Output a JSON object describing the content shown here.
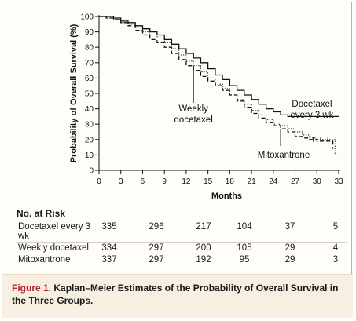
{
  "chart_data": {
    "type": "line",
    "title": "",
    "xlabel": "Months",
    "ylabel": "Probability of Overall Survival (%)",
    "xlim": [
      0,
      33
    ],
    "ylim": [
      0,
      100
    ],
    "x_ticks": [
      0,
      3,
      6,
      9,
      12,
      15,
      18,
      21,
      24,
      27,
      30,
      33
    ],
    "y_ticks": [
      0,
      10,
      20,
      30,
      40,
      50,
      60,
      70,
      80,
      90,
      100
    ],
    "grid": false,
    "legend": "inline annotations",
    "series": [
      {
        "name": "Docetaxel every 3 wk",
        "style": "solid",
        "points": [
          [
            0,
            100
          ],
          [
            1,
            100
          ],
          [
            2,
            99
          ],
          [
            3,
            97
          ],
          [
            4,
            96
          ],
          [
            5,
            94
          ],
          [
            6,
            92
          ],
          [
            7,
            90
          ],
          [
            8,
            88
          ],
          [
            9,
            85
          ],
          [
            10,
            82
          ],
          [
            11,
            79
          ],
          [
            12,
            76
          ],
          [
            13,
            73
          ],
          [
            14,
            70
          ],
          [
            15,
            66
          ],
          [
            16,
            62
          ],
          [
            17,
            59
          ],
          [
            18,
            55
          ],
          [
            19,
            52
          ],
          [
            20,
            49
          ],
          [
            21,
            46
          ],
          [
            22,
            43
          ],
          [
            23,
            40
          ],
          [
            24,
            38
          ],
          [
            25,
            36
          ],
          [
            26,
            35
          ],
          [
            33,
            35
          ]
        ]
      },
      {
        "name": "Weekly docetaxel",
        "style": "dotted",
        "points": [
          [
            0,
            100
          ],
          [
            1,
            99
          ],
          [
            2,
            98
          ],
          [
            3,
            96
          ],
          [
            4,
            95
          ],
          [
            5,
            93
          ],
          [
            6,
            90
          ],
          [
            7,
            88
          ],
          [
            8,
            86
          ],
          [
            9,
            83
          ],
          [
            10,
            79
          ],
          [
            11,
            75
          ],
          [
            12,
            71
          ],
          [
            13,
            68
          ],
          [
            14,
            64
          ],
          [
            15,
            60
          ],
          [
            16,
            56
          ],
          [
            17,
            53
          ],
          [
            18,
            49
          ],
          [
            19,
            46
          ],
          [
            20,
            43
          ],
          [
            21,
            39
          ],
          [
            22,
            36
          ],
          [
            23,
            33
          ],
          [
            24,
            30
          ],
          [
            25,
            29
          ],
          [
            26,
            27
          ],
          [
            27,
            25
          ],
          [
            28,
            23
          ],
          [
            29,
            21
          ],
          [
            30,
            20
          ],
          [
            32,
            20
          ],
          [
            32.5,
            10
          ],
          [
            33,
            10
          ]
        ]
      },
      {
        "name": "Mitoxantrone",
        "style": "dashed",
        "points": [
          [
            0,
            100
          ],
          [
            1,
            99
          ],
          [
            2,
            98
          ],
          [
            3,
            96
          ],
          [
            4,
            94
          ],
          [
            5,
            91
          ],
          [
            6,
            88
          ],
          [
            7,
            85
          ],
          [
            8,
            83
          ],
          [
            9,
            80
          ],
          [
            10,
            76
          ],
          [
            11,
            72
          ],
          [
            12,
            68
          ],
          [
            13,
            65
          ],
          [
            14,
            61
          ],
          [
            15,
            58
          ],
          [
            16,
            55
          ],
          [
            17,
            52
          ],
          [
            18,
            49
          ],
          [
            19,
            45
          ],
          [
            20,
            41
          ],
          [
            21,
            37
          ],
          [
            22,
            34
          ],
          [
            23,
            31
          ],
          [
            24,
            29
          ],
          [
            25,
            27
          ],
          [
            26,
            25
          ],
          [
            27,
            22
          ],
          [
            28,
            21
          ],
          [
            29,
            20
          ],
          [
            30,
            19
          ],
          [
            32,
            19
          ],
          [
            32.2,
            14
          ]
        ]
      }
    ],
    "annotations": [
      {
        "text_lines": [
          "Docetaxel",
          "every 3 wk"
        ],
        "pointer_x": 24.5,
        "pointer_y": 36
      },
      {
        "text_lines": [
          "Weekly",
          "docetaxel"
        ],
        "pointer_x": 13,
        "pointer_y": 69
      },
      {
        "text_lines": [
          "Mitoxantrone"
        ],
        "pointer_x": 25,
        "pointer_y": 28
      }
    ]
  },
  "risk_table": {
    "title": "No. at Risk",
    "rows": [
      {
        "label": "Docetaxel every 3 wk",
        "values": [
          "335",
          "296",
          "217",
          "104",
          "37",
          "5"
        ]
      },
      {
        "label": "Weekly docetaxel",
        "values": [
          "334",
          "297",
          "200",
          "105",
          "29",
          "4"
        ]
      },
      {
        "label": "Mitoxantrone",
        "values": [
          "337",
          "297",
          "192",
          "95",
          "29",
          "3"
        ]
      }
    ]
  },
  "caption": {
    "figure_label": "Figure 1.",
    "text": " Kaplan–Meier Estimates of the Probability of Overall Survival in the Three Groups."
  }
}
